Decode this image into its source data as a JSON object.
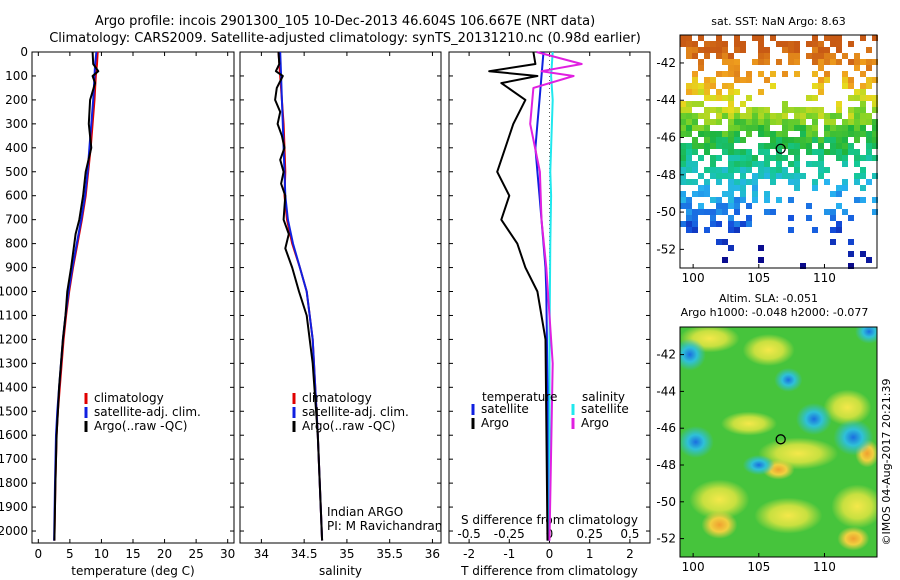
{
  "header": {
    "title_line1": "Argo profile: incois 2901300_105 10-Dec-2013 46.604S 106.667E (NRT data)",
    "title_line2": "Climatology: CARS2009. Satellite-adjusted climatology: synTS_20131210.nc (0.98d earlier)"
  },
  "colors": {
    "climatology": "#e00000",
    "satellite": "#1020e0",
    "argo": "#000000",
    "satellite_salinity": "#20e8ee",
    "argo_salinity": "#e020e0"
  },
  "annotations": {
    "program": "Indian ARGO",
    "pi": "PI: M Ravichandran",
    "imos_stamp": "©IMOS 04-Aug-2017 20:21:39"
  },
  "chart_data": [
    {
      "id": "temperature",
      "type": "line",
      "xlabel": "temperature (deg C)",
      "ylabel": "",
      "xlim": [
        -1,
        31
      ],
      "ylim": [
        2050,
        0
      ],
      "xticks": [
        0,
        5,
        10,
        15,
        20,
        25,
        30
      ],
      "yticks": [
        0,
        100,
        200,
        300,
        400,
        500,
        600,
        700,
        800,
        900,
        1000,
        1100,
        1200,
        1300,
        1400,
        1500,
        1600,
        1700,
        1800,
        1900,
        2000
      ],
      "legend": [
        "climatology",
        "satellite-adj. clim.",
        "Argo(..raw -QC)"
      ],
      "series": [
        {
          "name": "climatology",
          "color_key": "climatology",
          "x": [
            9.4,
            9.3,
            9.1,
            8.9,
            8.6,
            8.3,
            7.9,
            7.5,
            6.9,
            6.2,
            5.5,
            4.9,
            4.4,
            4.0,
            3.7,
            3.4,
            3.1,
            2.9,
            2.7,
            2.55
          ],
          "y": [
            0,
            50,
            100,
            200,
            300,
            400,
            500,
            600,
            700,
            800,
            900,
            1000,
            1100,
            1200,
            1300,
            1400,
            1500,
            1600,
            1800,
            2040
          ]
        },
        {
          "name": "satellite-adj. clim.",
          "color_key": "satellite",
          "x": [
            9.2,
            9.0,
            8.9,
            8.7,
            8.4,
            8.1,
            7.8,
            7.4,
            6.8,
            6.1,
            5.4,
            4.8,
            4.3,
            3.9,
            3.6,
            3.3,
            3.0,
            2.8,
            2.65,
            2.5
          ],
          "y": [
            0,
            50,
            100,
            200,
            300,
            400,
            500,
            600,
            700,
            800,
            900,
            1000,
            1100,
            1200,
            1300,
            1400,
            1500,
            1600,
            1800,
            2040
          ]
        },
        {
          "name": "Argo(..raw -QC)",
          "color_key": "argo",
          "x": [
            8.6,
            8.7,
            9.5,
            8.6,
            9.0,
            8.2,
            8.0,
            8.4,
            7.5,
            7.1,
            6.5,
            5.9,
            5.6,
            5.2,
            4.6,
            4.3,
            3.9,
            3.6,
            3.3,
            3.1,
            2.9,
            2.7,
            2.55
          ],
          "y": [
            0,
            50,
            80,
            100,
            130,
            200,
            300,
            400,
            500,
            600,
            700,
            760,
            820,
            900,
            1000,
            1100,
            1200,
            1300,
            1400,
            1500,
            1600,
            1800,
            2040
          ]
        }
      ]
    },
    {
      "id": "salinity",
      "type": "line",
      "xlabel": "salinity",
      "ylabel": "",
      "xlim": [
        33.75,
        36.1
      ],
      "ylim": [
        2050,
        0
      ],
      "xticks": [
        34,
        34.5,
        35,
        35.5,
        36
      ],
      "xticklabels": [
        "34",
        "34.5",
        "35",
        "35.5",
        "36"
      ],
      "legend": [
        "climatology",
        "satellite-adj. clim.",
        "Argo(..raw -QC)"
      ],
      "series": [
        {
          "name": "climatology",
          "color_key": "climatology",
          "x": [
            34.2,
            34.22,
            34.24,
            34.26,
            34.27,
            34.28,
            34.27,
            34.3,
            34.36,
            34.45,
            34.53,
            34.6,
            34.66,
            34.71
          ],
          "y": [
            0,
            100,
            200,
            300,
            400,
            500,
            600,
            700,
            800,
            900,
            1000,
            1200,
            1600,
            2040
          ]
        },
        {
          "name": "satellite-adj. clim.",
          "color_key": "satellite",
          "x": [
            34.22,
            34.23,
            34.24,
            34.25,
            34.26,
            34.27,
            34.28,
            34.31,
            34.37,
            34.45,
            34.53,
            34.6,
            34.66,
            34.71
          ],
          "y": [
            0,
            100,
            200,
            300,
            400,
            500,
            600,
            700,
            800,
            900,
            1000,
            1200,
            1600,
            2040
          ]
        },
        {
          "name": "Argo(..raw -QC)",
          "color_key": "argo",
          "x": [
            34.2,
            34.21,
            34.17,
            34.25,
            34.18,
            34.16,
            34.22,
            34.19,
            34.24,
            34.27,
            34.22,
            34.26,
            34.23,
            34.28,
            34.26,
            34.32,
            34.28,
            34.36,
            34.44,
            34.53,
            34.6,
            34.66,
            34.71
          ],
          "y": [
            0,
            50,
            80,
            100,
            150,
            200,
            250,
            300,
            350,
            400,
            450,
            500,
            550,
            600,
            700,
            760,
            820,
            900,
            1000,
            1100,
            1300,
            1600,
            2040
          ]
        }
      ]
    },
    {
      "id": "difference",
      "type": "line",
      "xlabel": "T difference from climatology",
      "top_label": "S difference from climatology",
      "xlim": [
        -2.5,
        2.5
      ],
      "ylim": [
        2050,
        0
      ],
      "xticks": [
        -2,
        -1,
        0,
        1,
        2
      ],
      "xticklabels": [
        "-2",
        "-1",
        "0",
        "1",
        "2"
      ],
      "top_ticks": [
        -0.5,
        -0.25,
        0,
        0.25,
        0.5
      ],
      "top_ticklabels": [
        "-0.5",
        "-0.25",
        "0",
        "0.25",
        "0.5"
      ],
      "legend_temperature_title": "temperature",
      "legend_salinity_title": "salinity",
      "legend": [
        "satellite",
        "Argo"
      ],
      "series": [
        {
          "name": "temperature satellite",
          "color_key": "satellite",
          "units": "T",
          "x": [
            -0.15,
            -0.2,
            -0.25,
            -0.3,
            -0.35,
            -0.3,
            -0.25,
            -0.2,
            -0.15,
            -0.1,
            -0.08,
            -0.05,
            -0.03
          ],
          "y": [
            0,
            100,
            200,
            300,
            400,
            500,
            600,
            700,
            800,
            900,
            1000,
            1400,
            2040
          ]
        },
        {
          "name": "temperature Argo",
          "color_key": "argo",
          "units": "T",
          "x": [
            -0.4,
            -0.35,
            -1.5,
            -0.3,
            -1.2,
            -0.6,
            -0.9,
            -1.1,
            -1.3,
            -1.0,
            -1.2,
            -0.8,
            -0.6,
            -0.3,
            -0.1,
            -0.05
          ],
          "y": [
            0,
            50,
            80,
            100,
            130,
            200,
            300,
            400,
            500,
            600,
            700,
            800,
            900,
            1000,
            1200,
            2040
          ]
        },
        {
          "name": "salinity satellite",
          "color_key": "satellite_salinity",
          "units": "S",
          "x": [
            0.02,
            0.01,
            0.02,
            0.015,
            0.01,
            0.005,
            0.01,
            0.005,
            0.0,
            0.0
          ],
          "y": [
            0,
            100,
            200,
            300,
            400,
            500,
            600,
            800,
            1200,
            2040
          ]
        },
        {
          "name": "salinity Argo",
          "color_key": "argo_salinity",
          "units": "S",
          "x": [
            -0.08,
            0.2,
            -0.05,
            0.15,
            -0.1,
            -0.12,
            -0.06,
            -0.05,
            -0.02,
            0.0,
            0.02,
            0.0
          ],
          "y": [
            0,
            50,
            80,
            100,
            150,
            300,
            500,
            700,
            900,
            1100,
            1300,
            2040
          ]
        }
      ]
    },
    {
      "id": "sst_map",
      "type": "heatmap",
      "title": "sat. SST: NaN Argo: 8.63",
      "xlim": [
        99,
        114
      ],
      "ylim": [
        -53,
        -40.5
      ],
      "xticks": [
        100,
        105,
        110
      ],
      "yticks": [
        -42,
        -44,
        -46,
        -48,
        -50,
        -52
      ],
      "marker": {
        "lon": 106.667,
        "lat": -46.604
      }
    },
    {
      "id": "sla_map",
      "type": "heatmap",
      "title": "Altim. SLA: -0.051",
      "subtitle": "Argo h1000: -0.048 h2000: -0.077",
      "xlim": [
        99,
        114
      ],
      "ylim": [
        -53,
        -40.5
      ],
      "xticks": [
        100,
        105,
        110
      ],
      "yticks": [
        -42,
        -44,
        -46,
        -48,
        -50,
        -52
      ],
      "marker": {
        "lon": 106.667,
        "lat": -46.604
      }
    }
  ]
}
